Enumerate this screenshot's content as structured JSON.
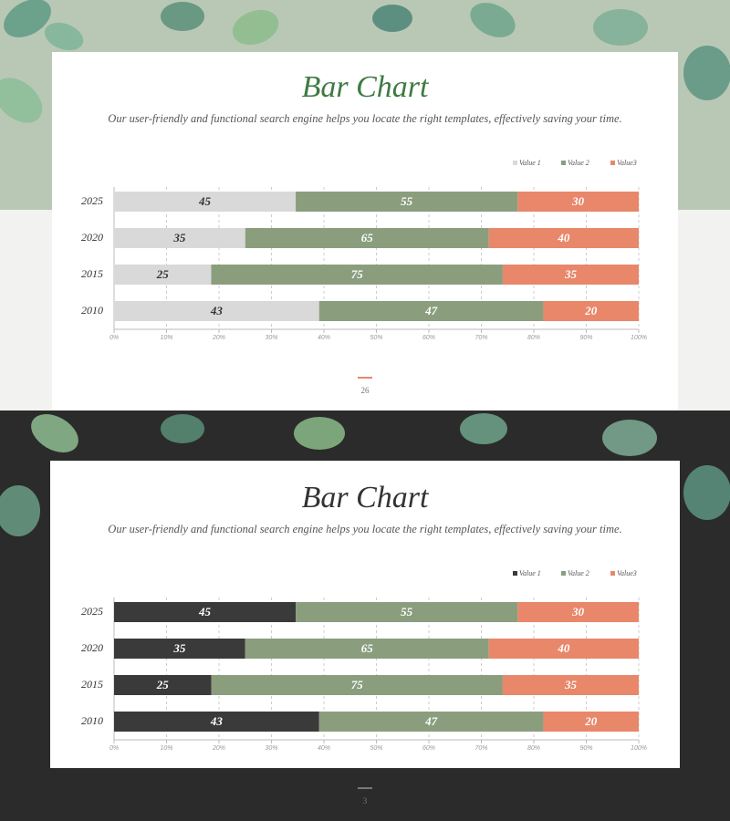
{
  "chart_data": [
    {
      "type": "bar",
      "stack": "percent",
      "orientation": "horizontal",
      "title": "Bar Chart",
      "subtitle": "Our user-friendly and functional search engine helps you locate the right templates, effectively saving your time.",
      "categories": [
        "2025",
        "2020",
        "2015",
        "2010"
      ],
      "series": [
        {
          "name": "Value 1",
          "color": "#d9d9d9",
          "label_color": "#333333",
          "values": [
            45,
            35,
            25,
            43
          ]
        },
        {
          "name": "Value 2",
          "color": "#8a9e7e",
          "label_color": "#ffffff",
          "values": [
            55,
            65,
            75,
            47
          ]
        },
        {
          "name": "Value3",
          "color": "#e8876a",
          "label_color": "#ffffff",
          "values": [
            30,
            40,
            35,
            20
          ]
        }
      ],
      "xlim": [
        0,
        100
      ],
      "xticks": [
        {
          "value": 0,
          "label": "0%"
        },
        {
          "value": 10,
          "label": "10%"
        },
        {
          "value": 20,
          "label": "20%"
        },
        {
          "value": 30,
          "label": "30%"
        },
        {
          "value": 40,
          "label": "40%"
        },
        {
          "value": 50,
          "label": "50%"
        },
        {
          "value": 60,
          "label": "60%"
        },
        {
          "value": 70,
          "label": "70%"
        },
        {
          "value": 80,
          "label": "80%"
        },
        {
          "value": 90,
          "label": "90%"
        },
        {
          "value": 100,
          "label": "100%"
        }
      ],
      "grid": true,
      "legend": "top-right",
      "page_number": "26"
    },
    {
      "type": "bar",
      "stack": "percent",
      "orientation": "horizontal",
      "title": "Bar Chart",
      "subtitle": "Our user-friendly and functional search engine helps you locate the right templates, effectively saving your time.",
      "categories": [
        "2025",
        "2020",
        "2015",
        "2010"
      ],
      "series": [
        {
          "name": "Value 1",
          "color": "#3a3a3a",
          "label_color": "#ffffff",
          "values": [
            45,
            35,
            25,
            43
          ]
        },
        {
          "name": "Value 2",
          "color": "#8a9e7e",
          "label_color": "#ffffff",
          "values": [
            55,
            65,
            75,
            47
          ]
        },
        {
          "name": "Value3",
          "color": "#e8876a",
          "label_color": "#ffffff",
          "values": [
            30,
            40,
            35,
            20
          ]
        }
      ],
      "xlim": [
        0,
        100
      ],
      "xticks": [
        {
          "value": 0,
          "label": "0%"
        },
        {
          "value": 10,
          "label": "10%"
        },
        {
          "value": 20,
          "label": "20%"
        },
        {
          "value": 30,
          "label": "30%"
        },
        {
          "value": 40,
          "label": "40%"
        },
        {
          "value": 50,
          "label": "50%"
        },
        {
          "value": 60,
          "label": "60%"
        },
        {
          "value": 70,
          "label": "70%"
        },
        {
          "value": 80,
          "label": "80%"
        },
        {
          "value": 90,
          "label": "90%"
        },
        {
          "value": 100,
          "label": "100%"
        }
      ],
      "grid": true,
      "legend": "top-right",
      "page_number": "3"
    }
  ]
}
